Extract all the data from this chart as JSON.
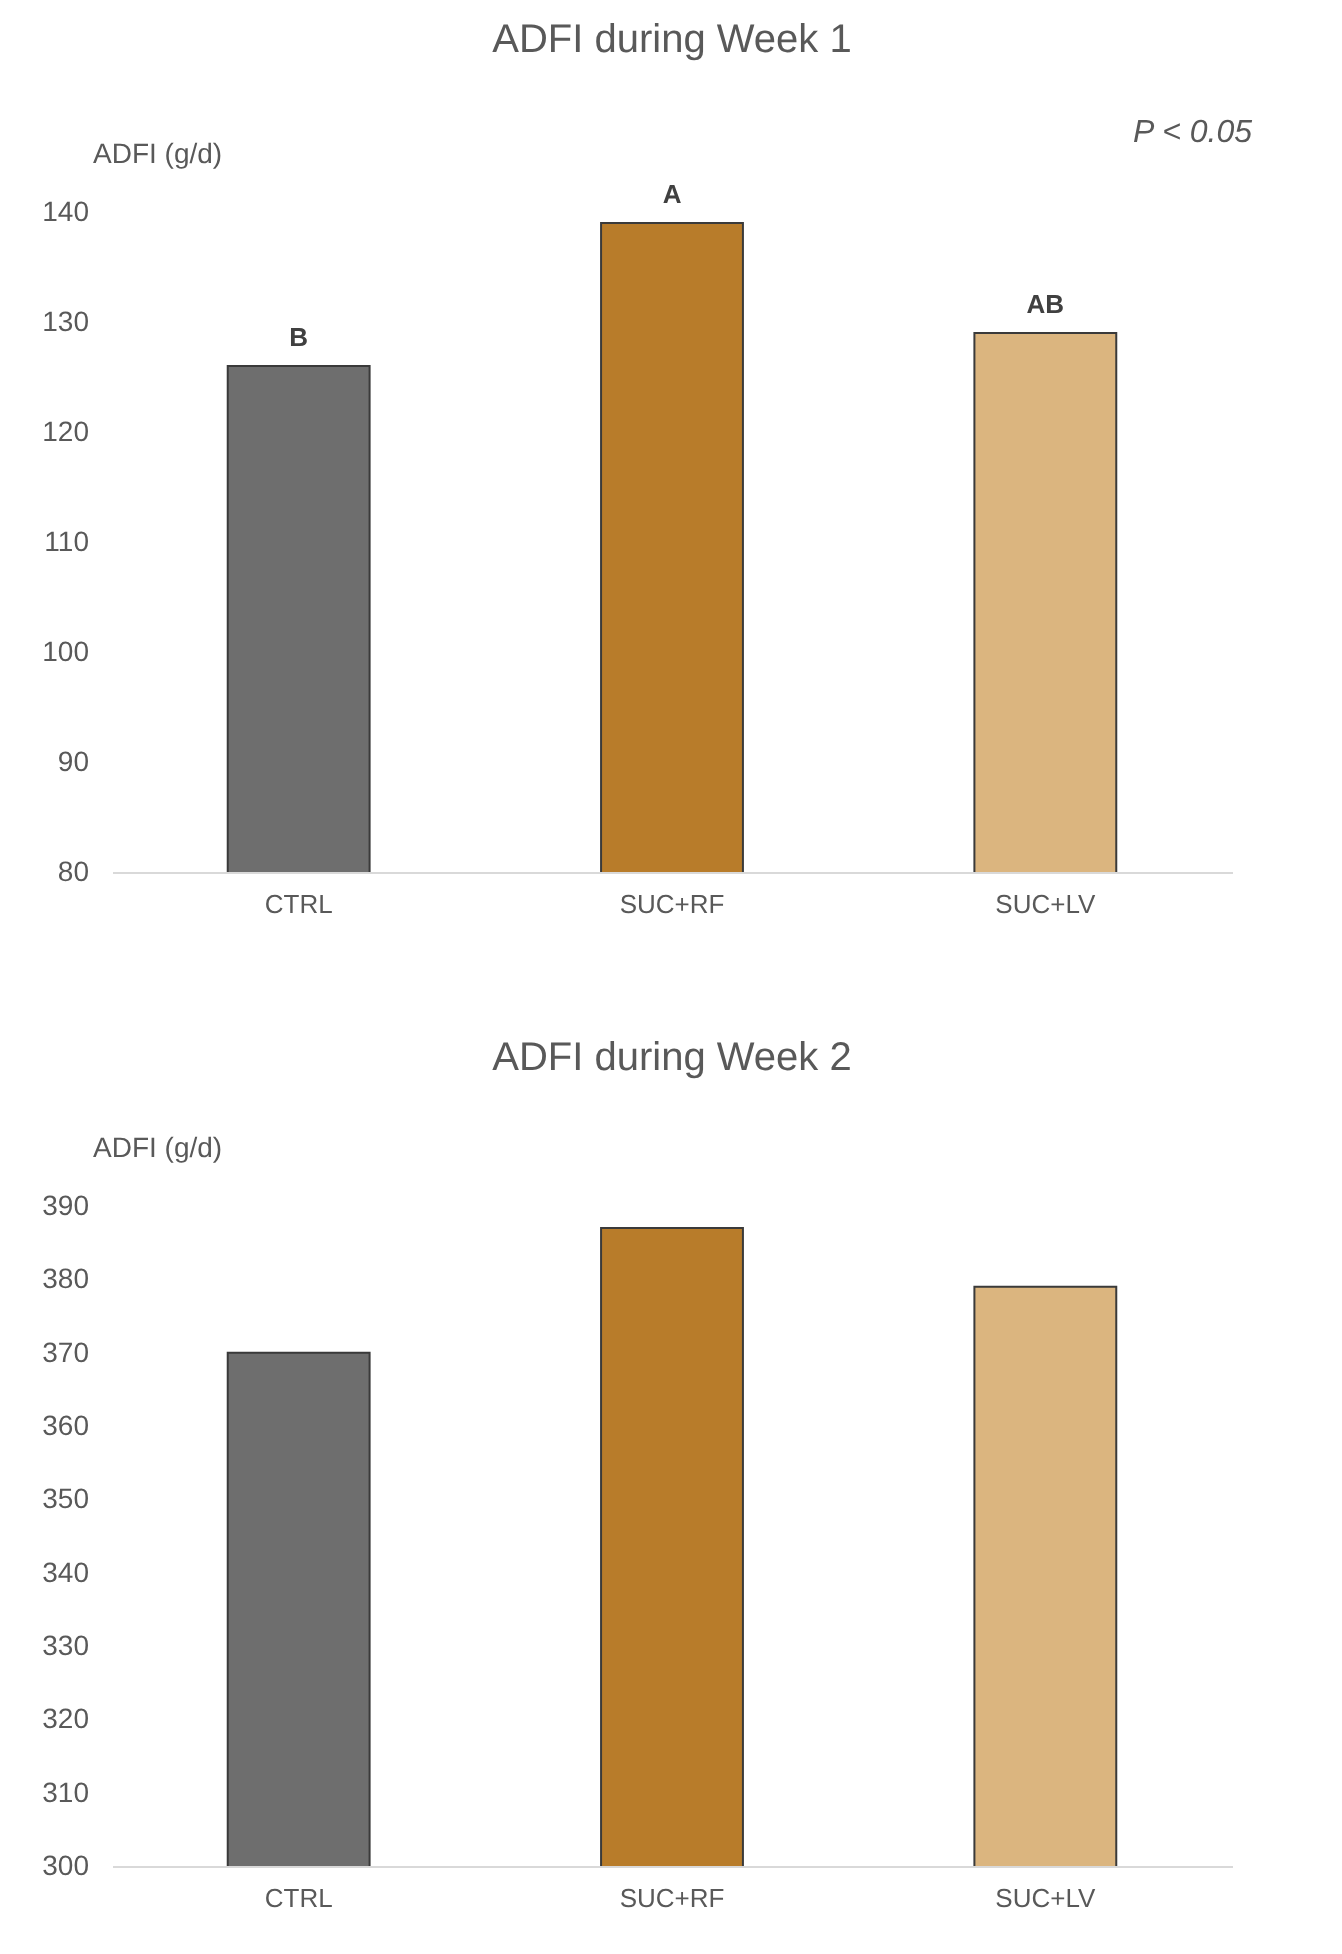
{
  "chart_data": [
    {
      "type": "bar",
      "title": "ADFI during Week 1",
      "ylabel": "ADFI (g/d)",
      "categories": [
        "CTRL",
        "SUC+RF",
        "SUC+LV"
      ],
      "values": [
        126,
        139,
        129
      ],
      "colors": [
        "#6e6e6e",
        "#b87c2a",
        "#dbb57f"
      ],
      "ylim": [
        80,
        140
      ],
      "yticks": [
        80,
        90,
        100,
        110,
        120,
        130,
        140
      ],
      "grid": false,
      "annotations": [
        {
          "text": "B",
          "x": "CTRL",
          "y": 126
        },
        {
          "text": "A",
          "x": "SUC+RF",
          "y": 139
        },
        {
          "text": "AB",
          "x": "SUC+LV",
          "y": 129
        },
        "P < 0.05"
      ]
    },
    {
      "type": "bar",
      "title": "ADFI during Week 2",
      "ylabel": "ADFI (g/d)",
      "categories": [
        "CTRL",
        "SUC+RF",
        "SUC+LV"
      ],
      "values": [
        370,
        387,
        379
      ],
      "colors": [
        "#6e6e6e",
        "#b87c2a",
        "#dbb57f"
      ],
      "ylim": [
        300,
        390
      ],
      "yticks": [
        300,
        310,
        320,
        330,
        340,
        350,
        360,
        370,
        380,
        390
      ],
      "grid": false
    }
  ]
}
